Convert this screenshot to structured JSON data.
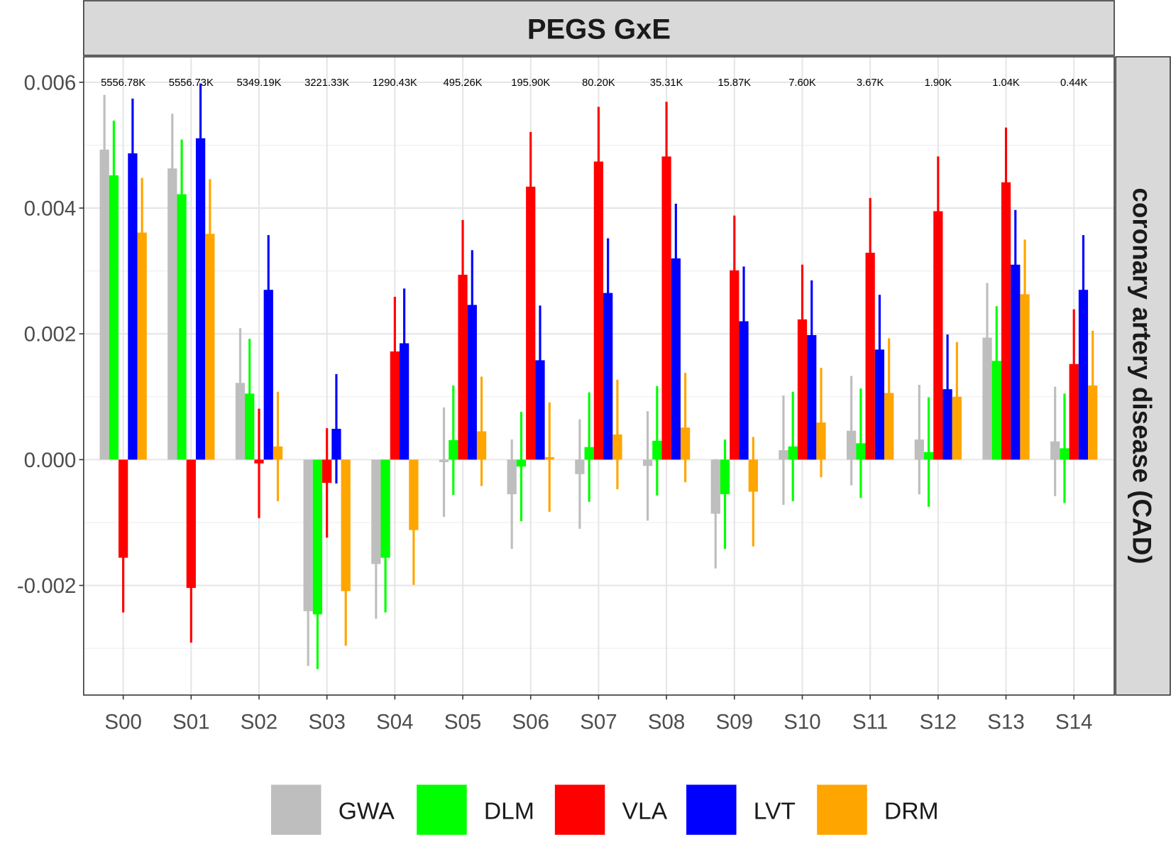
{
  "chart_data": {
    "type": "bar",
    "title": "PEGS GxE",
    "facet_label": "coronary artery disease (CAD)",
    "xlabel": "",
    "ylabel": "",
    "ylim": [
      -0.00375,
      0.00625
    ],
    "y_ticks": [
      "0.006",
      "0.004",
      "0.002",
      "0.000",
      "-0.002"
    ],
    "y_tick_values": [
      0.006,
      0.004,
      0.002,
      0.0,
      -0.002
    ],
    "grid": true,
    "legend_position": "bottom",
    "categories": [
      "S00",
      "S01",
      "S02",
      "S03",
      "S04",
      "S05",
      "S06",
      "S07",
      "S08",
      "S09",
      "S10",
      "S11",
      "S12",
      "S13",
      "S14"
    ],
    "annotations": [
      "5556.78K",
      "5556.73K",
      "5349.19K",
      "3221.33K",
      "1290.43K",
      "495.26K",
      "195.90K",
      "80.20K",
      "35.31K",
      "15.87K",
      "7.60K",
      "3.67K",
      "1.90K",
      "1.04K",
      "0.44K"
    ],
    "error_half_width": 0.00087,
    "series": [
      {
        "name": "GWA",
        "color": "#bebebe",
        "values": [
          0.00493,
          0.00463,
          0.00122,
          -0.00241,
          -0.00166,
          -4e-05,
          -0.00055,
          -0.00023,
          -0.0001,
          -0.00086,
          0.00015,
          0.00046,
          0.00032,
          0.00194,
          0.00029
        ]
      },
      {
        "name": "DLM",
        "color": "#00ff00",
        "values": [
          0.00452,
          0.00422,
          0.00105,
          -0.00246,
          -0.00156,
          0.00031,
          -0.00011,
          0.0002,
          0.0003,
          -0.00055,
          0.00021,
          0.00026,
          0.00012,
          0.00157,
          0.00018
        ]
      },
      {
        "name": "VLA",
        "color": "#ff0000",
        "values": [
          -0.00156,
          -0.00204,
          -6e-05,
          -0.00037,
          0.00172,
          0.00294,
          0.00434,
          0.00474,
          0.00482,
          0.00301,
          0.00223,
          0.00329,
          0.00395,
          0.00441,
          0.00152
        ]
      },
      {
        "name": "LVT",
        "color": "#0000ff",
        "values": [
          0.00487,
          0.00511,
          0.0027,
          0.00049,
          0.00185,
          0.00246,
          0.00158,
          0.00265,
          0.0032,
          0.0022,
          0.00198,
          0.00175,
          0.00112,
          0.0031,
          0.0027
        ]
      },
      {
        "name": "DRM",
        "color": "#ffa500",
        "values": [
          0.00361,
          0.00359,
          0.00021,
          -0.00209,
          -0.00112,
          0.00045,
          4e-05,
          0.0004,
          0.00051,
          -0.00051,
          0.00059,
          0.00106,
          0.001,
          0.00263,
          0.00118
        ]
      }
    ]
  }
}
